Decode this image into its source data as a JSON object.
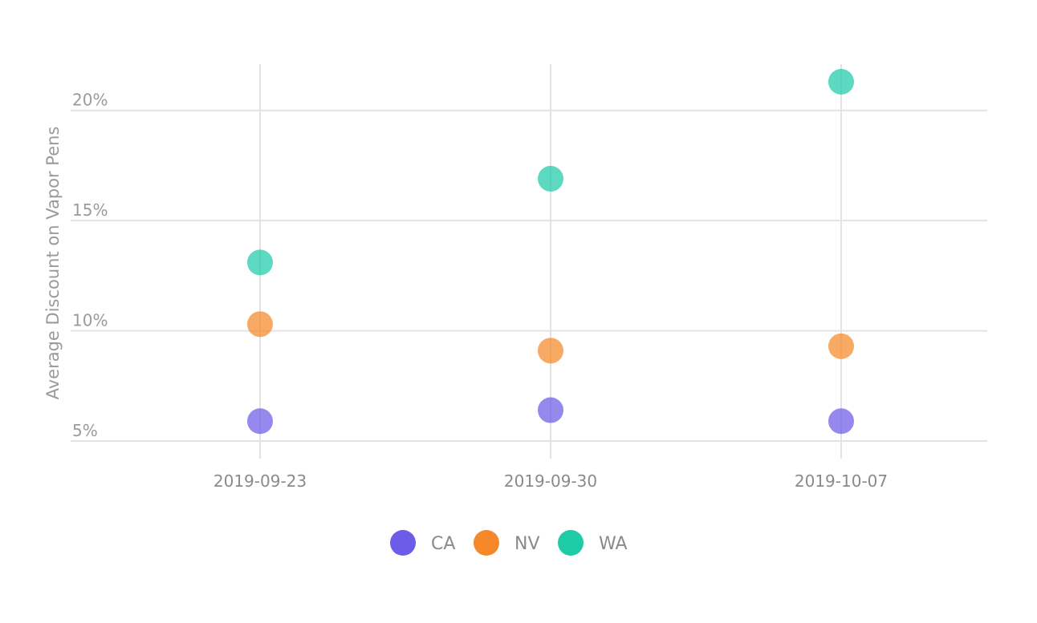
{
  "chart_data": {
    "type": "scatter",
    "x": [
      "2019-09-23",
      "2019-09-30",
      "2019-10-07"
    ],
    "ylabel": "Average Discount on Vapor Pens",
    "y_ticks": [
      "5%",
      "10%",
      "15%",
      "20%"
    ],
    "y_tick_values": [
      5,
      10,
      15,
      20
    ],
    "ylim": [
      4.2,
      22.1
    ],
    "grid": true,
    "legend_position": "bottom",
    "series": [
      {
        "name": "CA",
        "color": "#6c5ce7",
        "values": [
          5.9,
          6.4,
          5.9
        ]
      },
      {
        "name": "NV",
        "color": "#f5892a",
        "values": [
          10.3,
          9.1,
          9.3
        ]
      },
      {
        "name": "WA",
        "color": "#1dcba8",
        "values": [
          13.1,
          16.9,
          21.3
        ]
      }
    ]
  }
}
